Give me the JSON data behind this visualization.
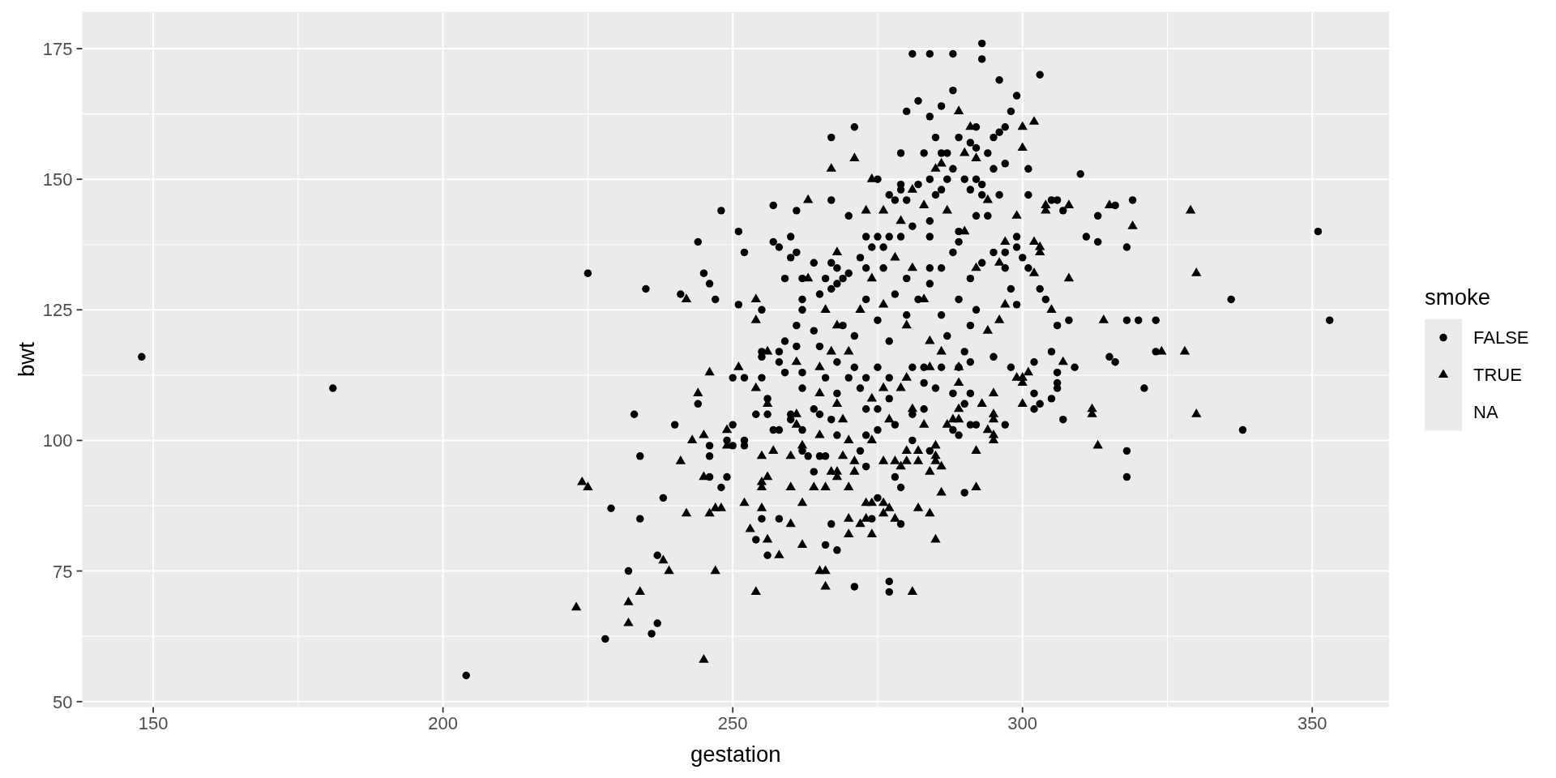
{
  "chart_data": {
    "type": "scatter",
    "xlabel": "gestation",
    "ylabel": "bwt",
    "legend_title": "smoke",
    "legend": "right",
    "grid": true,
    "xlim": [
      137.75,
      363.25
    ],
    "ylim": [
      48.95,
      182.05
    ],
    "xticks": [
      150,
      {
        "value": 175,
        "label": null
      },
      200,
      {
        "value": 225,
        "label": null
      },
      250,
      {
        "value": 275,
        "label": null
      },
      300,
      {
        "value": 325,
        "label": null
      },
      350
    ],
    "yticks": [
      50,
      {
        "value": 62.5,
        "label": null
      },
      75,
      {
        "value": 87.5,
        "label": null
      },
      100,
      {
        "value": 112.5,
        "label": null
      },
      125,
      {
        "value": 137.5,
        "label": null
      },
      150,
      {
        "value": 162.5,
        "label": null
      },
      175
    ],
    "series": [
      {
        "name": "FALSE",
        "color": "#000000",
        "marker": "circle",
        "x": [
          148,
          181,
          204,
          225,
          228,
          229,
          232,
          233,
          234,
          234,
          235,
          236,
          237,
          237,
          238,
          240,
          241,
          244,
          244,
          245,
          246,
          246,
          246,
          246,
          247,
          248,
          248,
          249,
          249,
          250,
          250,
          250,
          251,
          251,
          252,
          252,
          252,
          252,
          254,
          254,
          255,
          255,
          255,
          255,
          255,
          256,
          256,
          256,
          257,
          257,
          257,
          258,
          258,
          258,
          258,
          258,
          259,
          259,
          259,
          260,
          260,
          260,
          260,
          261,
          261,
          261,
          261,
          262,
          262,
          262,
          262,
          262,
          262,
          262,
          263,
          264,
          264,
          264,
          264,
          265,
          265,
          265,
          265,
          266,
          266,
          266,
          266,
          267,
          267,
          267,
          267,
          267,
          267,
          268,
          268,
          268,
          268,
          268,
          268,
          269,
          269,
          270,
          270,
          270,
          271,
          271,
          271,
          271,
          272,
          272,
          272,
          273,
          273,
          273,
          273,
          273,
          273,
          273,
          274,
          274,
          275,
          275,
          275,
          275,
          275,
          275,
          275,
          276,
          276,
          277,
          277,
          277,
          277,
          277,
          277,
          277,
          278,
          278,
          278,
          278,
          279,
          279,
          279,
          279,
          279,
          279,
          280,
          280,
          280,
          280,
          281,
          281,
          281,
          281,
          281,
          282,
          282,
          282,
          283,
          283,
          283,
          283,
          284,
          284,
          284,
          284,
          284,
          284,
          284,
          284,
          285,
          285,
          285,
          286,
          286,
          286,
          286,
          286,
          286,
          287,
          287,
          287,
          288,
          288,
          288,
          288,
          288,
          288,
          289,
          289,
          289,
          289,
          289,
          289,
          290,
          290,
          290,
          290,
          291,
          291,
          291,
          291,
          291,
          291,
          291,
          292,
          292,
          292,
          292,
          292,
          292,
          293,
          293,
          293,
          293,
          293,
          294,
          294,
          295,
          295,
          295,
          295,
          296,
          296,
          296,
          297,
          297,
          297,
          297,
          297,
          298,
          298,
          298,
          299,
          299,
          299,
          299,
          300,
          301,
          301,
          301,
          302,
          302,
          302,
          303,
          303,
          303,
          304,
          305,
          305,
          305,
          306,
          306,
          306,
          306,
          306,
          307,
          307,
          308,
          309,
          310,
          311,
          313,
          313,
          315,
          316,
          316,
          318,
          318,
          318,
          318,
          319,
          320,
          321,
          323,
          323,
          336,
          338,
          351,
          353
        ],
        "values": [
          116,
          110,
          55,
          132,
          62,
          87,
          75,
          105,
          85,
          97,
          129,
          63,
          65,
          78,
          89,
          103,
          128,
          107,
          138,
          132,
          93,
          97,
          99,
          130,
          127,
          91,
          144,
          93,
          100,
          99,
          103,
          112,
          126,
          140,
          99,
          100,
          112,
          136,
          81,
          105,
          85,
          112,
          116,
          117,
          125,
          78,
          105,
          108,
          102,
          138,
          145,
          85,
          102,
          115,
          117,
          137,
          113,
          119,
          131,
          104,
          105,
          135,
          139,
          118,
          122,
          136,
          144,
          98,
          102,
          110,
          113,
          125,
          127,
          131,
          97,
          94,
          106,
          121,
          134,
          97,
          105,
          118,
          128,
          80,
          97,
          112,
          131,
          84,
          104,
          129,
          134,
          146,
          158,
          79,
          101,
          109,
          115,
          130,
          133,
          122,
          131,
          112,
          132,
          143,
          72,
          114,
          120,
          160,
          98,
          110,
          135,
          95,
          101,
          106,
          112,
          127,
          133,
          139,
          85,
          137,
          89,
          102,
          106,
          114,
          123,
          139,
          150,
          133,
          137,
          71,
          73,
          108,
          112,
          119,
          139,
          147,
          93,
          103,
          128,
          146,
          84,
          91,
          139,
          148,
          149,
          155,
          124,
          131,
          146,
          163,
          100,
          105,
          114,
          141,
          174,
          127,
          149,
          165,
          106,
          111,
          114,
          155,
          98,
          130,
          133,
          139,
          142,
          150,
          162,
          174,
          110,
          147,
          158,
          114,
          124,
          133,
          148,
          155,
          164,
          120,
          150,
          155,
          102,
          109,
          136,
          152,
          167,
          174,
          101,
          114,
          127,
          138,
          140,
          158,
          90,
          107,
          117,
          150,
          103,
          109,
          115,
          122,
          131,
          148,
          157,
          103,
          125,
          143,
          150,
          156,
          160,
          134,
          147,
          149,
          173,
          176,
          143,
          155,
          116,
          136,
          152,
          158,
          147,
          159,
          169,
          103,
          133,
          136,
          153,
          160,
          114,
          129,
          163,
          126,
          137,
          139,
          166,
          135,
          133,
          147,
          152,
          106,
          109,
          115,
          107,
          129,
          170,
          127,
          108,
          117,
          146,
          110,
          111,
          113,
          122,
          146,
          104,
          144,
          123,
          114,
          151,
          139,
          138,
          143,
          116,
          115,
          145,
          93,
          98,
          123,
          137,
          146,
          123,
          110,
          117,
          123,
          127,
          102,
          140,
          123
        ]
      },
      {
        "name": "TRUE",
        "color": "#000000",
        "marker": "triangle",
        "x": [
          223,
          224,
          225,
          232,
          232,
          234,
          238,
          239,
          241,
          242,
          242,
          243,
          244,
          245,
          245,
          245,
          246,
          246,
          247,
          247,
          248,
          249,
          249,
          251,
          252,
          253,
          254,
          254,
          254,
          254,
          255,
          255,
          255,
          255,
          256,
          256,
          256,
          256,
          257,
          258,
          260,
          260,
          260,
          261,
          261,
          261,
          262,
          262,
          262,
          263,
          263,
          264,
          265,
          265,
          265,
          265,
          266,
          266,
          266,
          266,
          267,
          267,
          267,
          268,
          268,
          268,
          268,
          268,
          269,
          269,
          270,
          270,
          270,
          270,
          270,
          271,
          271,
          271,
          272,
          272,
          273,
          273,
          273,
          274,
          274,
          274,
          274,
          274,
          274,
          276,
          276,
          276,
          276,
          276,
          276,
          277,
          277,
          278,
          278,
          278,
          279,
          279,
          279,
          280,
          280,
          280,
          280,
          281,
          281,
          281,
          281,
          282,
          282,
          282,
          283,
          283,
          283,
          284,
          284,
          284,
          284,
          285,
          285,
          285,
          285,
          285,
          286,
          286,
          286,
          286,
          287,
          287,
          288,
          289,
          289,
          289,
          289,
          289,
          290,
          290,
          291,
          292,
          292,
          292,
          292,
          293,
          294,
          294,
          294,
          295,
          295,
          295,
          295,
          295,
          296,
          296,
          297,
          297,
          299,
          299,
          300,
          300,
          300,
          300,
          300,
          301,
          302,
          302,
          302,
          303,
          303,
          304,
          304,
          305,
          307,
          308,
          308,
          312,
          312,
          313,
          314,
          315,
          319,
          324,
          328,
          329,
          330,
          330
        ],
        "values": [
          68,
          92,
          91,
          65,
          69,
          71,
          77,
          75,
          96,
          86,
          127,
          100,
          109,
          58,
          93,
          101,
          86,
          113,
          75,
          87,
          87,
          99,
          102,
          114,
          88,
          83,
          71,
          110,
          123,
          127,
          87,
          91,
          92,
          97,
          81,
          93,
          107,
          117,
          98,
          78,
          84,
          91,
          97,
          103,
          105,
          115,
          80,
          88,
          99,
          131,
          146,
          91,
          75,
          101,
          109,
          114,
          72,
          75,
          91,
          125,
          94,
          117,
          152,
          93,
          94,
          107,
          122,
          136,
          97,
          104,
          82,
          85,
          91,
          100,
          117,
          94,
          96,
          154,
          84,
          125,
          85,
          88,
          144,
          82,
          88,
          100,
          108,
          131,
          150,
          86,
          88,
          96,
          110,
          126,
          144,
          87,
          104,
          85,
          96,
          135,
          95,
          110,
          142,
          96,
          98,
          112,
          122,
          71,
          106,
          133,
          148,
          87,
          96,
          98,
          103,
          127,
          145,
          86,
          94,
          114,
          119,
          81,
          96,
          97,
          99,
          152,
          90,
          95,
          117,
          153,
          103,
          144,
          104,
          104,
          106,
          111,
          114,
          163,
          140,
          155,
          160,
          91,
          98,
          133,
          154,
          107,
          102,
          121,
          146,
          100,
          101,
          104,
          105,
          109,
          123,
          134,
          126,
          138,
          112,
          143,
          107,
          111,
          112,
          156,
          160,
          113,
          132,
          138,
          161,
          136,
          137,
          144,
          145,
          125,
          115,
          131,
          145,
          105,
          106,
          99,
          123,
          145,
          141,
          117,
          117,
          144,
          105,
          132
        ]
      },
      {
        "name": "NA",
        "marker": "none"
      }
    ]
  }
}
